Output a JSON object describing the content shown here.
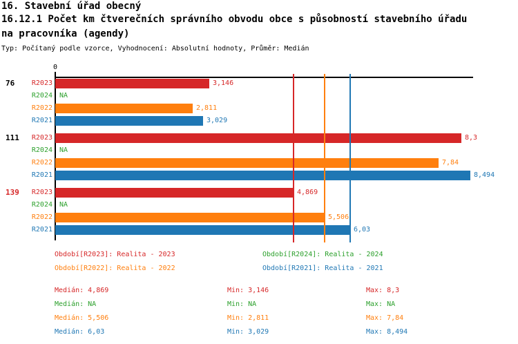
{
  "title": {
    "line1": "16. Stavební úřad obecný",
    "line2": "16.12.1 Počet km čtverečních správního obvodu obce s působností stavebního úřadu",
    "line3": "na pracovníka (agendy)",
    "subtitle": "Typ: Počítaný podle vzorce, Vyhodnocení: Absolutní hodnoty, Průměr: Medián"
  },
  "colors": {
    "r2023": "#d62728",
    "r2024": "#2ca02c",
    "r2022": "#ff7f0e",
    "r2021": "#1f77b4",
    "axis": "#000000"
  },
  "chart_data": {
    "type": "bar",
    "orientation": "horizontal",
    "x_axis": {
      "zero_label": "0",
      "xlim": [
        0,
        8.55
      ],
      "grid": false
    },
    "series": [
      {
        "key": "R2023",
        "label": "R2023",
        "color": "#d62728"
      },
      {
        "key": "R2024",
        "label": "R2024",
        "color": "#2ca02c"
      },
      {
        "key": "R2022",
        "label": "R2022",
        "color": "#ff7f0e"
      },
      {
        "key": "R2021",
        "label": "R2021",
        "color": "#1f77b4"
      }
    ],
    "groups": [
      {
        "label": "76",
        "label_color": "#000000",
        "bars": [
          {
            "series": "R2023",
            "value": 3.146,
            "display": "3,146"
          },
          {
            "series": "R2024",
            "value": null,
            "display": "NA"
          },
          {
            "series": "R2022",
            "value": 2.811,
            "display": "2,811"
          },
          {
            "series": "R2021",
            "value": 3.029,
            "display": "3,029"
          }
        ]
      },
      {
        "label": "111",
        "label_color": "#000000",
        "bars": [
          {
            "series": "R2023",
            "value": 8.3,
            "display": "8,3"
          },
          {
            "series": "R2024",
            "value": null,
            "display": "NA"
          },
          {
            "series": "R2022",
            "value": 7.84,
            "display": "7,84"
          },
          {
            "series": "R2021",
            "value": 8.494,
            "display": "8,494"
          }
        ]
      },
      {
        "label": "139",
        "label_color": "#d62728",
        "bars": [
          {
            "series": "R2023",
            "value": 4.869,
            "display": "4,869"
          },
          {
            "series": "R2024",
            "value": null,
            "display": "NA"
          },
          {
            "series": "R2022",
            "value": 5.506,
            "display": "5,506"
          },
          {
            "series": "R2021",
            "value": 6.03,
            "display": "6,03"
          }
        ]
      }
    ],
    "median_lines": [
      {
        "series": "R2023",
        "value": 4.869,
        "color": "#d62728"
      },
      {
        "series": "R2022",
        "value": 5.506,
        "color": "#ff7f0e"
      },
      {
        "series": "R2021",
        "value": 6.03,
        "color": "#1f77b4"
      }
    ]
  },
  "legend": {
    "items": [
      {
        "label": "Období[R2023]: Realita - 2023",
        "color": "#d62728"
      },
      {
        "label": "Období[R2024]: Realita - 2024",
        "color": "#2ca02c"
      },
      {
        "label": "Období[R2022]: Realita - 2022",
        "color": "#ff7f0e"
      },
      {
        "label": "Období[R2021]: Realita - 2021",
        "color": "#1f77b4"
      }
    ]
  },
  "stats": {
    "rows": [
      {
        "color": "#d62728",
        "median": "Medián: 4,869",
        "min": "Min: 3,146",
        "max": "Max: 8,3"
      },
      {
        "color": "#2ca02c",
        "median": "Medián: NA",
        "min": "Min: NA",
        "max": "Max: NA"
      },
      {
        "color": "#ff7f0e",
        "median": "Medián: 5,506",
        "min": "Min: 2,811",
        "max": "Max: 7,84"
      },
      {
        "color": "#1f77b4",
        "median": "Medián: 6,03",
        "min": "Min: 3,029",
        "max": "Max: 8,494"
      }
    ]
  }
}
